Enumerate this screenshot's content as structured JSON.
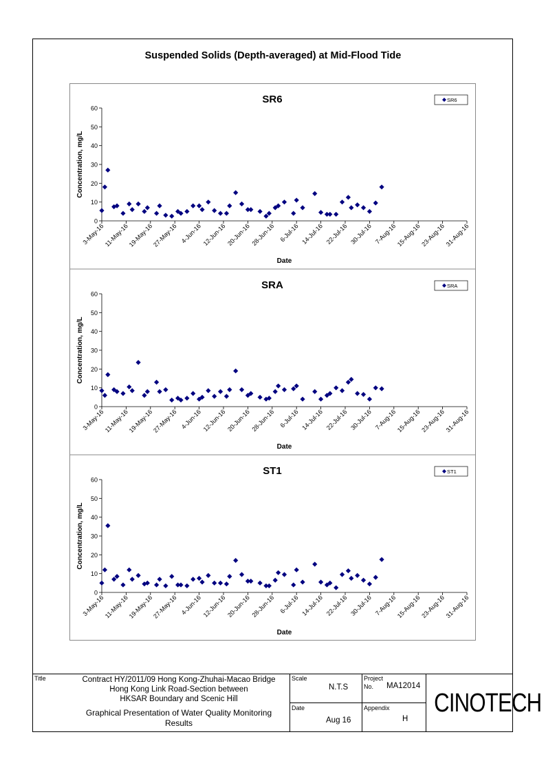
{
  "page_title": "Suspended Solids (Depth-averaged) at Mid-Flood Tide",
  "chart_data": [
    {
      "type": "scatter",
      "title": "SR6",
      "xlabel": "Date",
      "ylabel": "Concentration, mg/L",
      "ylim": [
        0,
        60
      ],
      "yticks": [
        0,
        10,
        20,
        30,
        40,
        50,
        60
      ],
      "xtick_labels": [
        "3-May-16",
        "11-May-16",
        "19-May-16",
        "27-May-16",
        "4-Jun-16",
        "12-Jun-16",
        "20-Jun-16",
        "28-Jun-16",
        "6-Jul-16",
        "14-Jul-16",
        "22-Jul-16",
        "30-Jul-16",
        "7-Aug-16",
        "15-Aug-16",
        "23-Aug-16",
        "31-Aug-16"
      ],
      "legend": "top-right",
      "series": [
        {
          "name": "SR6",
          "color": "#000080",
          "points": [
            [
              "2016-05-03",
              5.5
            ],
            [
              "2016-05-04",
              18
            ],
            [
              "2016-05-05",
              27
            ],
            [
              "2016-05-07",
              7.5
            ],
            [
              "2016-05-08",
              8
            ],
            [
              "2016-05-10",
              4
            ],
            [
              "2016-05-12",
              9
            ],
            [
              "2016-05-13",
              6
            ],
            [
              "2016-05-15",
              9
            ],
            [
              "2016-05-17",
              5
            ],
            [
              "2016-05-18",
              7
            ],
            [
              "2016-05-21",
              4
            ],
            [
              "2016-05-22",
              8
            ],
            [
              "2016-05-24",
              3
            ],
            [
              "2016-05-26",
              2.5
            ],
            [
              "2016-05-28",
              5
            ],
            [
              "2016-05-29",
              4
            ],
            [
              "2016-05-31",
              5
            ],
            [
              "2016-06-02",
              8
            ],
            [
              "2016-06-04",
              8
            ],
            [
              "2016-06-05",
              6
            ],
            [
              "2016-06-07",
              10
            ],
            [
              "2016-06-09",
              5.5
            ],
            [
              "2016-06-11",
              4
            ],
            [
              "2016-06-13",
              4
            ],
            [
              "2016-06-14",
              8
            ],
            [
              "2016-06-16",
              15
            ],
            [
              "2016-06-18",
              9
            ],
            [
              "2016-06-20",
              6
            ],
            [
              "2016-06-21",
              6
            ],
            [
              "2016-06-24",
              5
            ],
            [
              "2016-06-26",
              2.5
            ],
            [
              "2016-06-27",
              4
            ],
            [
              "2016-06-29",
              7
            ],
            [
              "2016-06-30",
              8
            ],
            [
              "2016-07-02",
              10
            ],
            [
              "2016-07-05",
              4
            ],
            [
              "2016-07-06",
              11
            ],
            [
              "2016-07-08",
              7
            ],
            [
              "2016-07-12",
              14.5
            ],
            [
              "2016-07-14",
              4.5
            ],
            [
              "2016-07-16",
              3.5
            ],
            [
              "2016-07-17",
              3.5
            ],
            [
              "2016-07-19",
              3.5
            ],
            [
              "2016-07-21",
              10
            ],
            [
              "2016-07-23",
              12.5
            ],
            [
              "2016-07-24",
              7
            ],
            [
              "2016-07-26",
              8.5
            ],
            [
              "2016-07-28",
              7
            ],
            [
              "2016-07-30",
              5
            ],
            [
              "2016-08-01",
              9.5
            ],
            [
              "2016-08-03",
              18
            ]
          ]
        }
      ]
    },
    {
      "type": "scatter",
      "title": "SRA",
      "xlabel": "Date",
      "ylabel": "Concentration, mg/L",
      "ylim": [
        0,
        60
      ],
      "yticks": [
        0,
        10,
        20,
        30,
        40,
        50,
        60
      ],
      "xtick_labels": [
        "3-May-16",
        "11-May-16",
        "19-May-16",
        "27-May-16",
        "4-Jun-16",
        "12-Jun-16",
        "20-Jun-16",
        "28-Jun-16",
        "6-Jul-16",
        "14-Jul-16",
        "22-Jul-16",
        "30-Jul-16",
        "7-Aug-16",
        "15-Aug-16",
        "23-Aug-16",
        "31-Aug-16"
      ],
      "legend": "top-right",
      "series": [
        {
          "name": "SRA",
          "color": "#000080",
          "points": [
            [
              "2016-05-03",
              8.5
            ],
            [
              "2016-05-04",
              6
            ],
            [
              "2016-05-05",
              17
            ],
            [
              "2016-05-07",
              9
            ],
            [
              "2016-05-08",
              8
            ],
            [
              "2016-05-10",
              7
            ],
            [
              "2016-05-12",
              10.5
            ],
            [
              "2016-05-13",
              8.5
            ],
            [
              "2016-05-15",
              23.5
            ],
            [
              "2016-05-17",
              6
            ],
            [
              "2016-05-18",
              8
            ],
            [
              "2016-05-21",
              13
            ],
            [
              "2016-05-22",
              8
            ],
            [
              "2016-05-24",
              9
            ],
            [
              "2016-05-26",
              3.5
            ],
            [
              "2016-05-28",
              4.5
            ],
            [
              "2016-05-29",
              3.5
            ],
            [
              "2016-05-31",
              4.5
            ],
            [
              "2016-06-02",
              7
            ],
            [
              "2016-06-04",
              4
            ],
            [
              "2016-06-05",
              5
            ],
            [
              "2016-06-07",
              8.5
            ],
            [
              "2016-06-09",
              5.5
            ],
            [
              "2016-06-11",
              8
            ],
            [
              "2016-06-13",
              5.5
            ],
            [
              "2016-06-14",
              9
            ],
            [
              "2016-06-16",
              19
            ],
            [
              "2016-06-18",
              9
            ],
            [
              "2016-06-20",
              6
            ],
            [
              "2016-06-21",
              7
            ],
            [
              "2016-06-24",
              5
            ],
            [
              "2016-06-26",
              4
            ],
            [
              "2016-06-27",
              4.5
            ],
            [
              "2016-06-29",
              8
            ],
            [
              "2016-06-30",
              11
            ],
            [
              "2016-07-02",
              9
            ],
            [
              "2016-07-05",
              9.5
            ],
            [
              "2016-07-06",
              11
            ],
            [
              "2016-07-08",
              4
            ],
            [
              "2016-07-12",
              8
            ],
            [
              "2016-07-14",
              4
            ],
            [
              "2016-07-16",
              6
            ],
            [
              "2016-07-17",
              7
            ],
            [
              "2016-07-19",
              10
            ],
            [
              "2016-07-21",
              8.5
            ],
            [
              "2016-07-23",
              13
            ],
            [
              "2016-07-24",
              14.5
            ],
            [
              "2016-07-26",
              7
            ],
            [
              "2016-07-28",
              6.5
            ],
            [
              "2016-07-30",
              4
            ],
            [
              "2016-08-01",
              10
            ],
            [
              "2016-08-03",
              9.5
            ]
          ]
        }
      ]
    },
    {
      "type": "scatter",
      "title": "ST1",
      "xlabel": "Date",
      "ylabel": "Concentration, mg/L",
      "ylim": [
        0,
        60
      ],
      "yticks": [
        0,
        10,
        20,
        30,
        40,
        50,
        60
      ],
      "xtick_labels": [
        "3-May-16",
        "11-May-16",
        "19-May-16",
        "27-May-16",
        "4-Jun-16",
        "12-Jun-16",
        "20-Jun-16",
        "28-Jun-16",
        "6-Jul-16",
        "14-Jul-16",
        "22-Jul-16",
        "30-Jul-16",
        "7-Aug-16",
        "15-Aug-16",
        "23-Aug-16",
        "31-Aug-16"
      ],
      "legend": "top-right",
      "series": [
        {
          "name": "ST1",
          "color": "#000080",
          "points": [
            [
              "2016-05-03",
              5
            ],
            [
              "2016-05-04",
              12
            ],
            [
              "2016-05-05",
              35.5
            ],
            [
              "2016-05-07",
              7
            ],
            [
              "2016-05-08",
              8.5
            ],
            [
              "2016-05-10",
              4
            ],
            [
              "2016-05-12",
              12
            ],
            [
              "2016-05-13",
              7
            ],
            [
              "2016-05-15",
              9
            ],
            [
              "2016-05-17",
              4.5
            ],
            [
              "2016-05-18",
              5
            ],
            [
              "2016-05-21",
              4
            ],
            [
              "2016-05-22",
              7
            ],
            [
              "2016-05-24",
              3.5
            ],
            [
              "2016-05-26",
              8.5
            ],
            [
              "2016-05-28",
              4
            ],
            [
              "2016-05-29",
              4
            ],
            [
              "2016-05-31",
              3.5
            ],
            [
              "2016-06-02",
              7
            ],
            [
              "2016-06-04",
              7.5
            ],
            [
              "2016-06-05",
              5.5
            ],
            [
              "2016-06-07",
              9
            ],
            [
              "2016-06-09",
              5
            ],
            [
              "2016-06-11",
              5
            ],
            [
              "2016-06-13",
              4.5
            ],
            [
              "2016-06-14",
              8.5
            ],
            [
              "2016-06-16",
              17
            ],
            [
              "2016-06-18",
              9.5
            ],
            [
              "2016-06-20",
              6
            ],
            [
              "2016-06-21",
              6
            ],
            [
              "2016-06-24",
              5
            ],
            [
              "2016-06-26",
              3.5
            ],
            [
              "2016-06-27",
              3.5
            ],
            [
              "2016-06-29",
              6.5
            ],
            [
              "2016-06-30",
              10.5
            ],
            [
              "2016-07-02",
              9.5
            ],
            [
              "2016-07-05",
              4
            ],
            [
              "2016-07-06",
              12
            ],
            [
              "2016-07-08",
              5.5
            ],
            [
              "2016-07-12",
              15
            ],
            [
              "2016-07-14",
              5.5
            ],
            [
              "2016-07-16",
              4
            ],
            [
              "2016-07-17",
              5
            ],
            [
              "2016-07-19",
              2.5
            ],
            [
              "2016-07-21",
              9.5
            ],
            [
              "2016-07-23",
              11.5
            ],
            [
              "2016-07-24",
              7.5
            ],
            [
              "2016-07-26",
              9
            ],
            [
              "2016-07-28",
              6.5
            ],
            [
              "2016-07-30",
              4.5
            ],
            [
              "2016-08-01",
              8
            ],
            [
              "2016-08-03",
              17.5
            ]
          ]
        }
      ]
    }
  ],
  "title_block": {
    "title_label": "Title",
    "title_lines": [
      "Contract HY/2011/09 Hong Kong-Zhuhai-Macao Bridge",
      "Hong Kong Link Road-Section between",
      "HKSAR Boundary and Scenic Hill"
    ],
    "subtitle_lines": [
      "Graphical Presentation of Water Quality Monitoring",
      "Results"
    ],
    "scale_label": "Scale",
    "scale_value": "N.T.S",
    "project_label": "Project",
    "no_label": "No.",
    "project_no": "MA12014",
    "date_label": "Date",
    "date_value": "Aug 16",
    "appendix_label": "Appendix",
    "appendix_value": "H",
    "logo": "CINOTECH"
  }
}
